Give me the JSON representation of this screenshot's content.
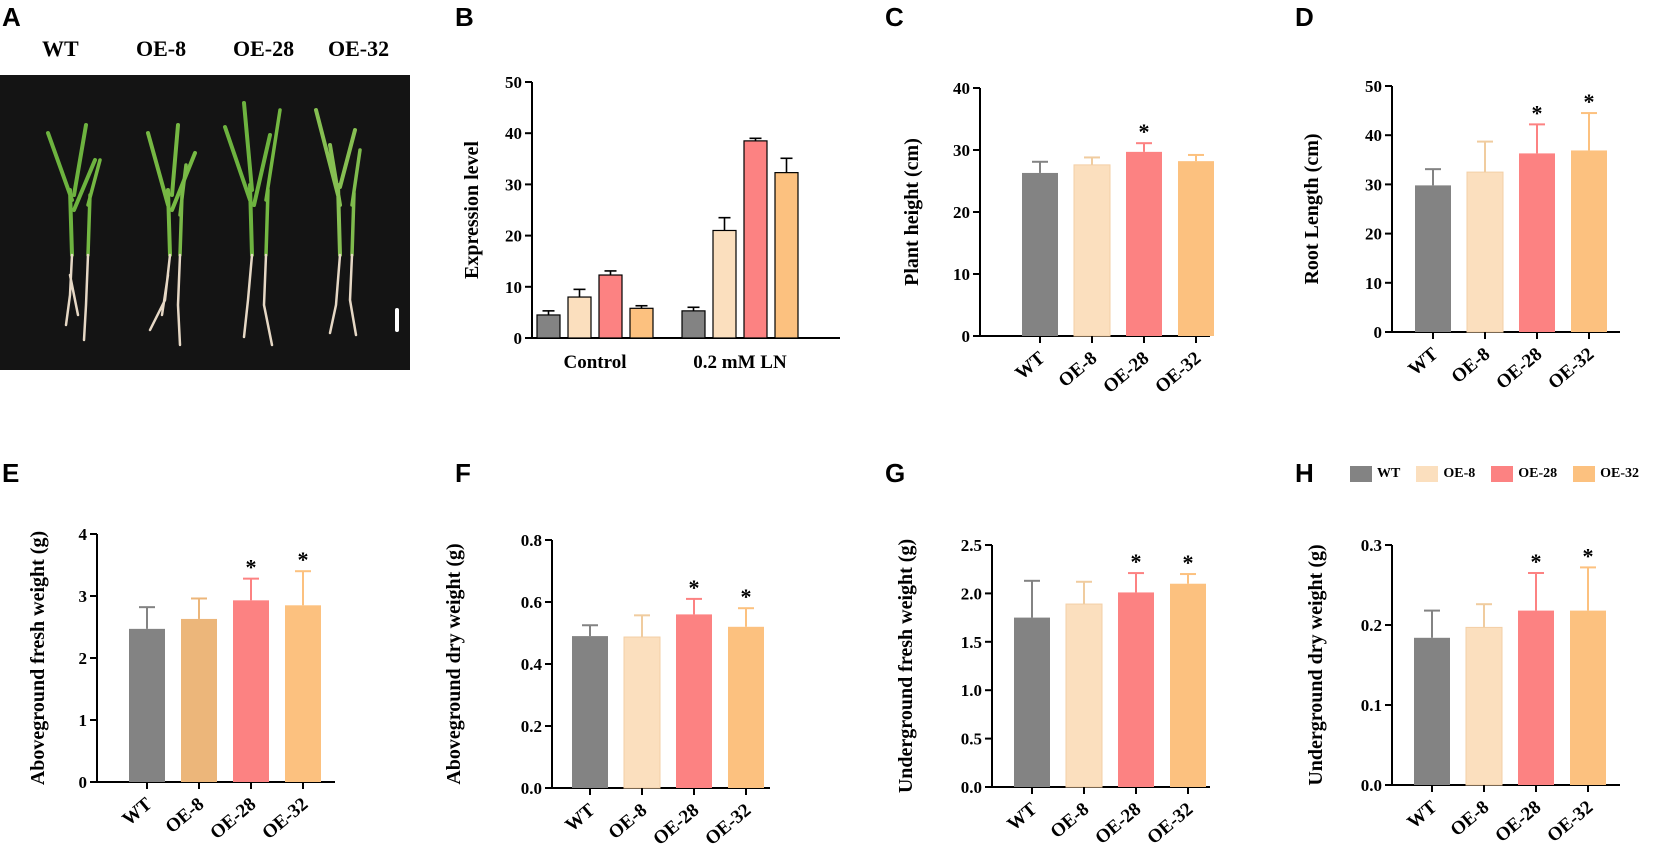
{
  "colors": {
    "WT": "#838383",
    "OE-8": "#fbdfbe",
    "OE-28": "#fc8282",
    "OE-32": "#fcc17f",
    "OE-8-E": "#ecb67a"
  },
  "panel_letters": [
    "A",
    "B",
    "C",
    "D",
    "E",
    "F",
    "G",
    "H"
  ],
  "photo": {
    "labels": [
      "WT",
      "OE-8",
      "OE-28",
      "OE-32"
    ]
  },
  "legend": [
    "WT",
    "OE-8",
    "OE-28",
    "OE-32"
  ],
  "chart_data": [
    {
      "id": "B",
      "type": "bar",
      "ylabel": "Expression  level",
      "categories": [
        "Control",
        "0.2 mM LN"
      ],
      "series": [
        {
          "name": "WT",
          "values": [
            4.5,
            5.3
          ],
          "errors": [
            0.8,
            0.7
          ]
        },
        {
          "name": "OE-8",
          "values": [
            8.0,
            21.0
          ],
          "errors": [
            1.5,
            2.5
          ]
        },
        {
          "name": "OE-28",
          "values": [
            12.3,
            38.5
          ],
          "errors": [
            0.8,
            0.5
          ]
        },
        {
          "name": "OE-32",
          "values": [
            5.8,
            32.3
          ],
          "errors": [
            0.5,
            2.8
          ]
        }
      ],
      "ylim": [
        0,
        50
      ],
      "yticks": [
        "0",
        "10",
        "20",
        "30",
        "40",
        "50"
      ]
    },
    {
      "id": "C",
      "type": "bar",
      "ylabel": "Plant height (cm)",
      "categories": [
        "WT",
        "OE-8",
        "OE-28",
        "OE-32"
      ],
      "values": [
        26.3,
        27.6,
        29.7,
        28.2
      ],
      "errors": [
        1.8,
        1.2,
        1.4,
        1.0
      ],
      "significant": [
        "",
        "",
        "*",
        ""
      ],
      "ylim": [
        0,
        40
      ],
      "yticks": [
        "0",
        "10",
        "20",
        "30",
        "40"
      ]
    },
    {
      "id": "D",
      "type": "bar",
      "ylabel": "Root Length (cm)",
      "categories": [
        "WT",
        "OE-8",
        "OE-28",
        "OE-32"
      ],
      "values": [
        29.8,
        32.5,
        36.3,
        36.9
      ],
      "errors": [
        3.3,
        6.2,
        5.9,
        7.6
      ],
      "significant": [
        "",
        "",
        "*",
        "*"
      ],
      "ylim": [
        0,
        50
      ],
      "yticks": [
        "0",
        "10",
        "20",
        "30",
        "40",
        "50"
      ]
    },
    {
      "id": "E",
      "type": "bar",
      "ylabel": "Aboveground fresh weight (g)",
      "categories": [
        "WT",
        "OE-8",
        "OE-28",
        "OE-32"
      ],
      "values": [
        2.47,
        2.63,
        2.93,
        2.85
      ],
      "errors": [
        0.35,
        0.33,
        0.35,
        0.55
      ],
      "significant": [
        "",
        "",
        "*",
        "*"
      ],
      "ylim": [
        0,
        4
      ],
      "yticks": [
        "0",
        "1",
        "2",
        "3",
        "4"
      ]
    },
    {
      "id": "F",
      "type": "bar",
      "ylabel": "Aboveground dry weight (g)",
      "categories": [
        "WT",
        "OE-8",
        "OE-28",
        "OE-32"
      ],
      "values": [
        0.49,
        0.487,
        0.56,
        0.52
      ],
      "errors": [
        0.035,
        0.07,
        0.05,
        0.06
      ],
      "significant": [
        "",
        "",
        "*",
        "*"
      ],
      "ylim": [
        0,
        0.8
      ],
      "yticks": [
        "0.0",
        "0.2",
        "0.4",
        "0.6",
        "0.8"
      ]
    },
    {
      "id": "G",
      "type": "bar",
      "ylabel": "Underground fresh weight (g)",
      "categories": [
        "WT",
        "OE-8",
        "OE-28",
        "OE-32"
      ],
      "values": [
        1.75,
        1.89,
        2.01,
        2.1
      ],
      "errors": [
        0.38,
        0.23,
        0.2,
        0.1
      ],
      "significant": [
        "",
        "",
        "*",
        "*"
      ],
      "ylim": [
        0,
        2.5
      ],
      "yticks": [
        "0.0",
        "0.5",
        "1.0",
        "1.5",
        "2.0",
        "2.5"
      ]
    },
    {
      "id": "H",
      "type": "bar",
      "ylabel": "Underground dry weight (g)",
      "categories": [
        "WT",
        "OE-8",
        "OE-28",
        "OE-32"
      ],
      "values": [
        0.184,
        0.197,
        0.218,
        0.218
      ],
      "errors": [
        0.034,
        0.029,
        0.047,
        0.054
      ],
      "significant": [
        "",
        "",
        "*",
        "*"
      ],
      "ylim": [
        0,
        0.3
      ],
      "yticks": [
        "0.0",
        "0.1",
        "0.2",
        "0.3"
      ]
    }
  ]
}
